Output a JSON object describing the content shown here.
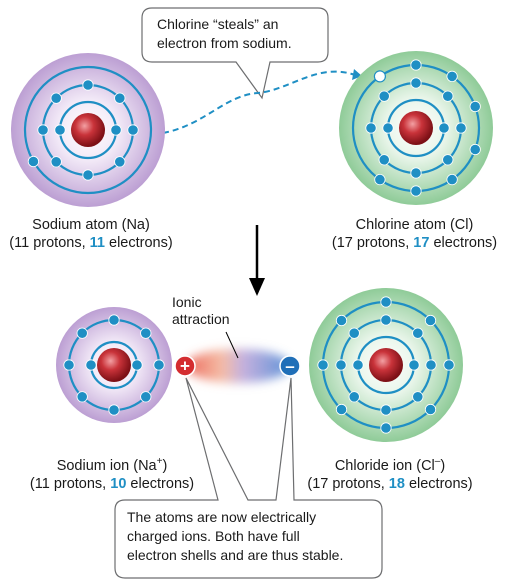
{
  "callout_top": {
    "line1": "Chlorine “steals” an",
    "line2": "electron from sodium."
  },
  "sodium_atom": {
    "name": "Sodium atom (Na)",
    "details_prefix": "(11 protons, ",
    "electrons": "11",
    "details_suffix": " electrons)"
  },
  "chlorine_atom": {
    "name": "Chlorine atom (Cl)",
    "details_prefix": "(17 protons, ",
    "electrons": "17",
    "details_suffix": " electrons)"
  },
  "ionic_label": {
    "line1": "Ionic",
    "line2": "attraction"
  },
  "sodium_ion": {
    "name": "Sodium ion (Na",
    "charge": "+",
    "name_end": ")",
    "details_prefix": "(11 protons, ",
    "electrons": "10",
    "details_suffix": " electrons)"
  },
  "chloride_ion": {
    "name": "Chloride ion (Cl",
    "charge": "–",
    "name_end": ")",
    "details_prefix": "(17 protons, ",
    "electrons": "18",
    "details_suffix": " electrons)"
  },
  "callout_bottom": {
    "line1": "The atoms are now electrically",
    "line2": "charged ions. Both have full",
    "line3": "electron shells and are thus stable."
  },
  "plus_sign": "+",
  "minus_sign": "–",
  "colors": {
    "electron_blue": "#1f8fc4",
    "sodium_shell": "#c8aedb",
    "chlorine_shell": "#9fd1a6",
    "nucleus": "#c1272d"
  }
}
